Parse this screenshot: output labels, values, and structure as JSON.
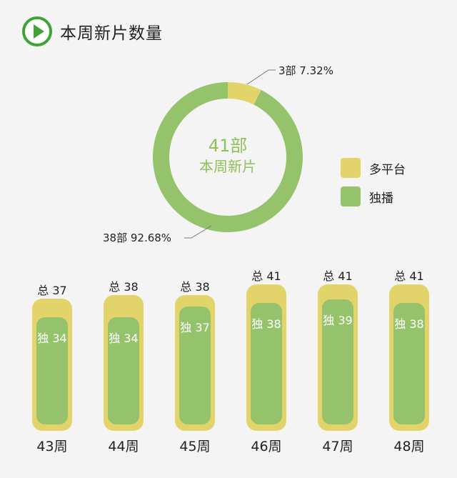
{
  "header": {
    "title": "本周新片数量",
    "icon": "play-icon"
  },
  "colors": {
    "multi": "#e2d46a",
    "exclusive": "#95c36b",
    "accent_green": "#3fa336",
    "center_text": "#8fc05a"
  },
  "pie": {
    "center_count": "41部",
    "center_text": "本周新片",
    "slice_labels": {
      "multi": "3部  7.32%",
      "exclusive": "38部  92.68%"
    },
    "legend": [
      "多平台",
      "独播"
    ]
  },
  "chart_data": [
    {
      "type": "pie",
      "title": "本周新片数量",
      "center_label": "41部 本周新片",
      "slices": [
        {
          "label": "多平台",
          "count": 3,
          "percent": 7.32
        },
        {
          "label": "独播",
          "count": 38,
          "percent": 92.68
        }
      ]
    },
    {
      "type": "bar",
      "categories": [
        "43周",
        "44周",
        "45周",
        "46周",
        "47周",
        "48周"
      ],
      "series": [
        {
          "name": "总",
          "values": [
            37,
            38,
            38,
            41,
            41,
            41
          ]
        },
        {
          "name": "独",
          "values": [
            34,
            34,
            37,
            38,
            39,
            38
          ]
        }
      ],
      "total_labels": [
        "总 37",
        "总 38",
        "总 38",
        "总 41",
        "总 41",
        "总 41"
      ],
      "exclusive_labels": [
        "独 34",
        "独 34",
        "独 37",
        "独 38",
        "独 39",
        "独 38"
      ]
    }
  ]
}
